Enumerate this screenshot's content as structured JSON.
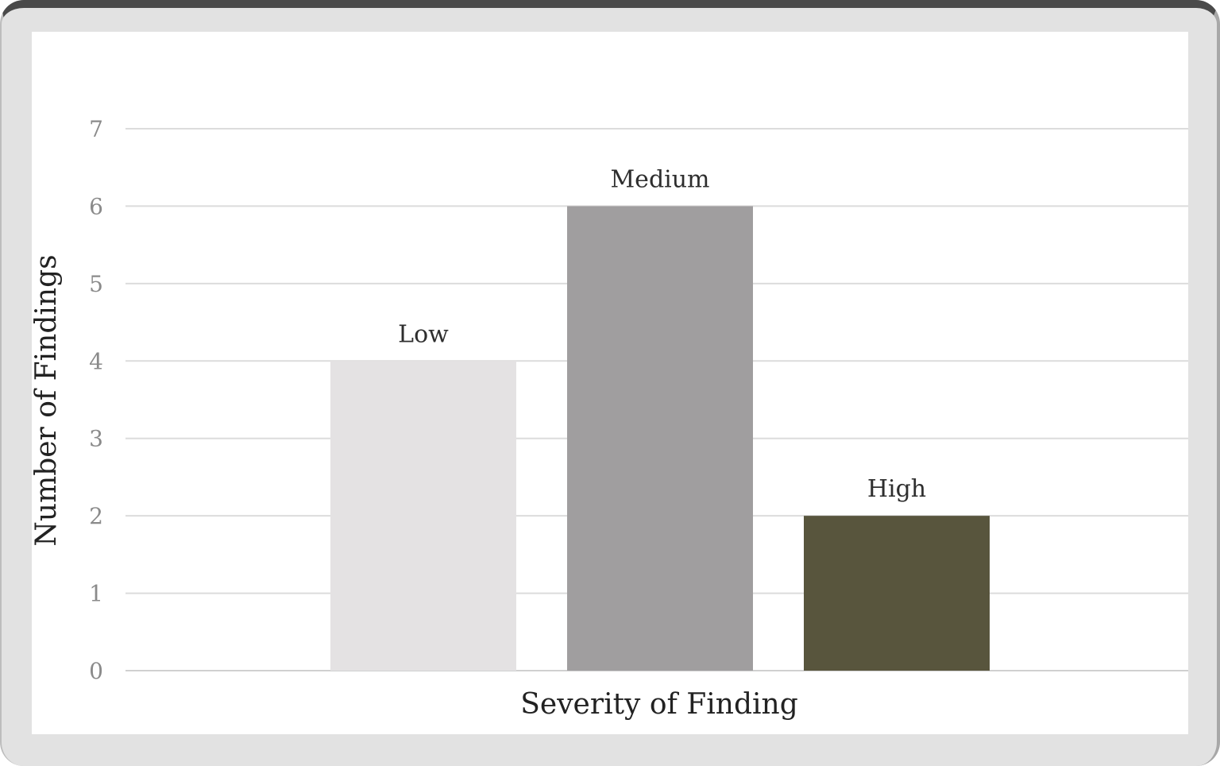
{
  "chart_data": {
    "type": "bar",
    "categories": [
      "Low",
      "Medium",
      "High"
    ],
    "values": [
      4,
      6,
      2
    ],
    "colors": [
      "#e4e2e3",
      "#a09e9f",
      "#58553d"
    ],
    "title": "",
    "xlabel": "Severity of Finding",
    "ylabel": "Number of Findings",
    "ylim": [
      0,
      7
    ],
    "yticks": [
      0,
      1,
      2,
      3,
      4,
      5,
      6,
      7
    ],
    "grid": true,
    "legend": "none",
    "data_labels": "category names above bars"
  }
}
